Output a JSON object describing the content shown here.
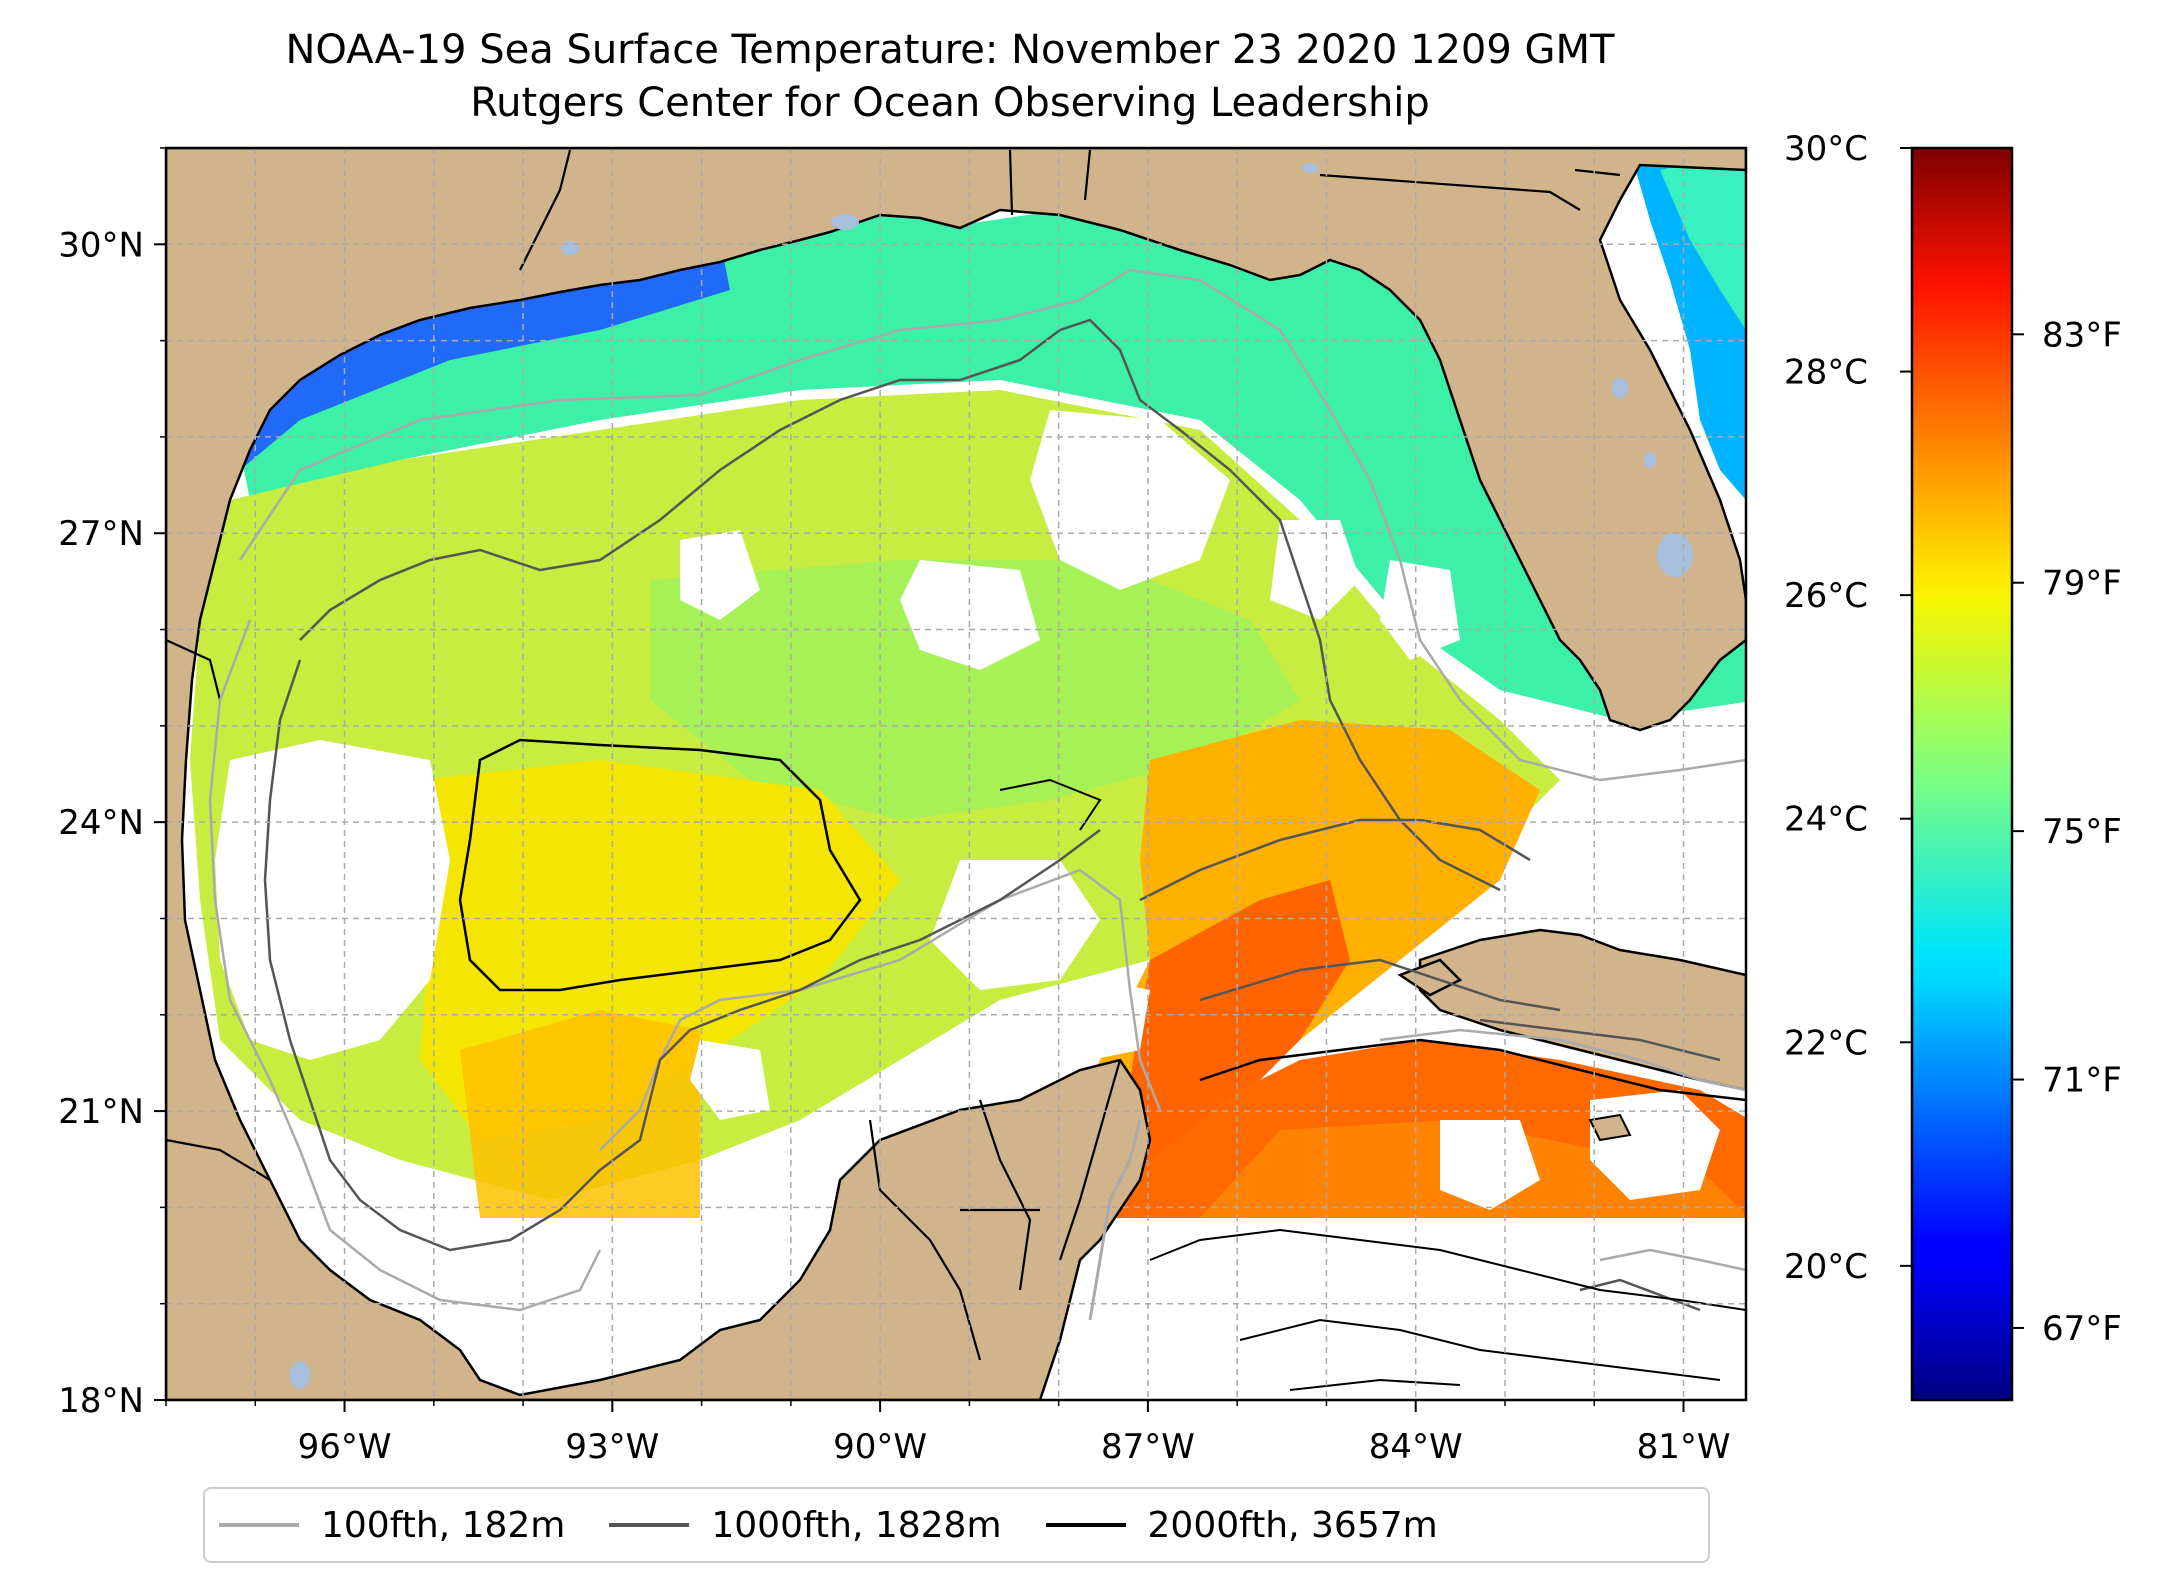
{
  "title": {
    "line1": "NOAA-19 Sea Surface Temperature: November 23 2020 1209 GMT",
    "line2": "Rutgers Center for Ocean Observing Leadership"
  },
  "axes": {
    "lon_ticks": [
      "96°W",
      "93°W",
      "90°W",
      "87°W",
      "84°W",
      "81°W"
    ],
    "lat_ticks": [
      "30°N",
      "27°N",
      "24°N",
      "21°N",
      "18°N"
    ],
    "lon_range": [
      -98.0,
      -80.3
    ],
    "lat_range": [
      18.0,
      31.0
    ],
    "grid": true
  },
  "colorbar": {
    "celsius_ticks": [
      "30°C",
      "28°C",
      "26°C",
      "24°C",
      "22°C",
      "20°C"
    ],
    "fahrenheit_ticks": [
      "83°F",
      "79°F",
      "75°F",
      "71°F",
      "67°F"
    ],
    "colormap": "jet",
    "celsius_values": [
      30,
      28,
      26,
      24,
      22,
      20
    ],
    "fahrenheit_values": [
      83,
      79,
      75,
      71,
      67
    ],
    "range_celsius": [
      18.8,
      30.0
    ]
  },
  "legend": {
    "items": [
      {
        "label": "100fth, 182m",
        "color": "#aaaaaa"
      },
      {
        "label": "1000fth, 1828m",
        "color": "#555555"
      },
      {
        "label": "2000fth, 3657m",
        "color": "#000000"
      }
    ]
  },
  "colors": {
    "land": "#d2b48c",
    "lakes": "#a5bfdd",
    "missing": "#ffffff"
  }
}
